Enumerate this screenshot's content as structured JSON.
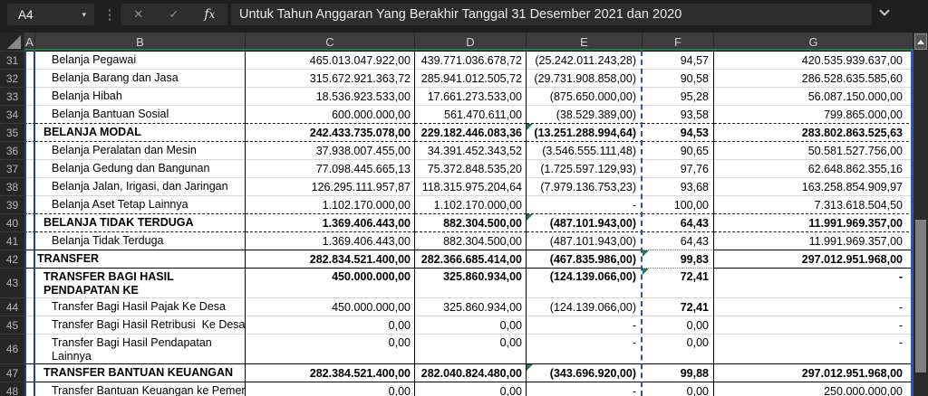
{
  "formula_bar": {
    "name_box": "A4",
    "formula": "Untuk Tahun Anggaran Yang Berakhir Tanggal 31 Desember 2021 dan 2020"
  },
  "columns": [
    "A",
    "B",
    "C",
    "D",
    "E",
    "F",
    "G"
  ],
  "colors": {
    "header_selection_green": "#1e7e45",
    "error_marker_green": "#1d7c45",
    "page_break_blue_dark": "#26407b",
    "page_break_blue_bright": "#2b51cf",
    "page_break_blue_dashed": "#2c4fbe"
  },
  "rows": [
    {
      "num": "31",
      "label": "Belanja Pegawai",
      "indent": 3,
      "bold": false,
      "bt": "black",
      "mark": "",
      "c": "465.013.047.922,00",
      "d": "439.771.036.678,72",
      "e": "(25.242.011.243,28)",
      "f": "94,57",
      "g": "420.535.939.637,00"
    },
    {
      "num": "32",
      "label": "Belanja Barang dan Jasa",
      "indent": 3,
      "bold": false,
      "bt": "gray",
      "mark": "",
      "c": "315.672.921.363,72",
      "d": "285.941.012.505,72",
      "e": "(29.731.908.858,00)",
      "f": "90,58",
      "g": "286.528.635.585,60"
    },
    {
      "num": "33",
      "label": "Belanja Hibah",
      "indent": 3,
      "bold": false,
      "bt": "gray",
      "mark": "",
      "c": "18.536.923.533,00",
      "d": "17.661.273.533,00",
      "e": "(875.650.000,00)",
      "f": "95,28",
      "g": "56.087.150.000,00"
    },
    {
      "num": "34",
      "label": "Belanja Bantuan Sosial",
      "indent": 3,
      "bold": false,
      "bt": "gray",
      "mark": "",
      "c": "600.000.000,00",
      "d": "561.470.611,00",
      "e": "(38.529.389,00)",
      "f": "93,58",
      "g": "799.865.000,00"
    },
    {
      "num": "35",
      "label": "BELANJA MODAL",
      "indent": 2,
      "bold": true,
      "bt": "dash",
      "mark": "e",
      "c": "242.433.735.078,00",
      "d": "229.182.446.083,36",
      "e": "(13.251.288.994,64)",
      "f": "94,53",
      "g": "283.802.863.525,63"
    },
    {
      "num": "36",
      "label": "Belanja Peralatan dan Mesin",
      "indent": 3,
      "bold": false,
      "bt": "dash",
      "mark": "",
      "c": "37.938.007.455,00",
      "d": "34.391.452.343,52",
      "e": "(3.546.555.111,48)",
      "f": "90,65",
      "g": "50.581.527.756,00"
    },
    {
      "num": "37",
      "label": "Belanja Gedung dan Bangunan",
      "indent": 3,
      "bold": false,
      "bt": "gray",
      "mark": "",
      "c": "77.098.445.665,13",
      "d": "75.372.848.535,20",
      "e": "(1.725.597.129,93)",
      "f": "97,76",
      "g": "62.648.862.355,16"
    },
    {
      "num": "38",
      "label": "Belanja Jalan, Irigasi, dan Jaringan",
      "indent": 3,
      "bold": false,
      "bt": "gray",
      "mark": "",
      "c": "126.295.111.957,87",
      "d": "118.315.975.204,64",
      "e": "(7.979.136.753,23)",
      "f": "93,68",
      "g": "163.258.854.909,97"
    },
    {
      "num": "39",
      "label": "Belanja Aset Tetap Lainnya",
      "indent": 3,
      "bold": false,
      "bt": "gray",
      "mark": "",
      "c": "1.102.170.000,00",
      "d": "1.102.170.000,00",
      "e": "-",
      "f": "100,00",
      "g": "7.313.618.504,50"
    },
    {
      "num": "40",
      "label": "BELANJA TIDAK TERDUGA",
      "indent": 2,
      "bold": true,
      "bt": "dash",
      "mark": "e",
      "c": "1.369.406.443,00",
      "d": "882.304.500,00",
      "e": "(487.101.943,00)",
      "f": "64,43",
      "g": "11.991.969.357,00"
    },
    {
      "num": "41",
      "label": "Belanja Tidak Terduga",
      "indent": 3,
      "bold": false,
      "bt": "dash",
      "mark": "",
      "c": "1.369.406.443,00",
      "d": "882.304.500,00",
      "e": "(487.101.943,00)",
      "f": "64,43",
      "g": "11.991.969.357,00"
    },
    {
      "num": "42",
      "label": "TRANSFER",
      "indent": 1,
      "bold": true,
      "bt": "black",
      "mark": "f",
      "fdot": true,
      "c": "282.834.521.400,00",
      "d": "282.366.685.414,00",
      "e": "(467.835.986,00)",
      "f": "99,83",
      "g": "297.012.951.968,00"
    },
    {
      "num": "43",
      "label": "TRANSFER BAGI HASIL PENDAPATAN KE\nDESA",
      "indent": 2,
      "bold": true,
      "bt": "black",
      "mark": "f",
      "fdot": true,
      "c": "450.000.000,00",
      "d": "325.860.934,00",
      "e": "(124.139.066,00)",
      "f": "72,41",
      "g": "-"
    },
    {
      "num": "44",
      "label": "Transfer Bagi Hasil Pajak Ke Desa",
      "indent": 3,
      "bold": false,
      "fbold": true,
      "bt": "gray",
      "mark": "",
      "c": "450.000.000,00",
      "d": "325.860.934,00",
      "e": "(124.139.066,00)",
      "f": "72,41",
      "g": "-"
    },
    {
      "num": "45",
      "label": "Transfer Bagi Hasil Retribusi  Ke Desa",
      "indent": 3,
      "bold": false,
      "bt": "gray",
      "mark": "",
      "c": "0,00",
      "d": "0,00",
      "e": "-",
      "f": "0,00",
      "g": "-"
    },
    {
      "num": "46",
      "label": "Transfer Bagi Hasil Pendapatan Lainnya\nKe Desa",
      "indent": 3,
      "bold": false,
      "bt": "gray",
      "mark": "",
      "c": "0,00",
      "d": "0,00",
      "e": "-",
      "f": "0,00",
      "g": "-"
    },
    {
      "num": "47",
      "label": "TRANSFER BANTUAN KEUANGAN",
      "indent": 2,
      "bold": true,
      "bt": "black",
      "mark": "e",
      "c": "282.384.521.400,00",
      "d": "282.040.824.480,00",
      "e": "(343.696.920,00)",
      "f": "99,88",
      "g": "297.012.951.968,00"
    },
    {
      "num": "48",
      "label": "Transfer Bantuan Keuangan ke Pemerintah",
      "indent": 3,
      "bold": false,
      "nowrap": true,
      "bt": "black",
      "mark": "",
      "c": "0,00",
      "d": "0,00",
      "e": "-",
      "f": "0,00",
      "g": "250.000.000,00"
    }
  ]
}
